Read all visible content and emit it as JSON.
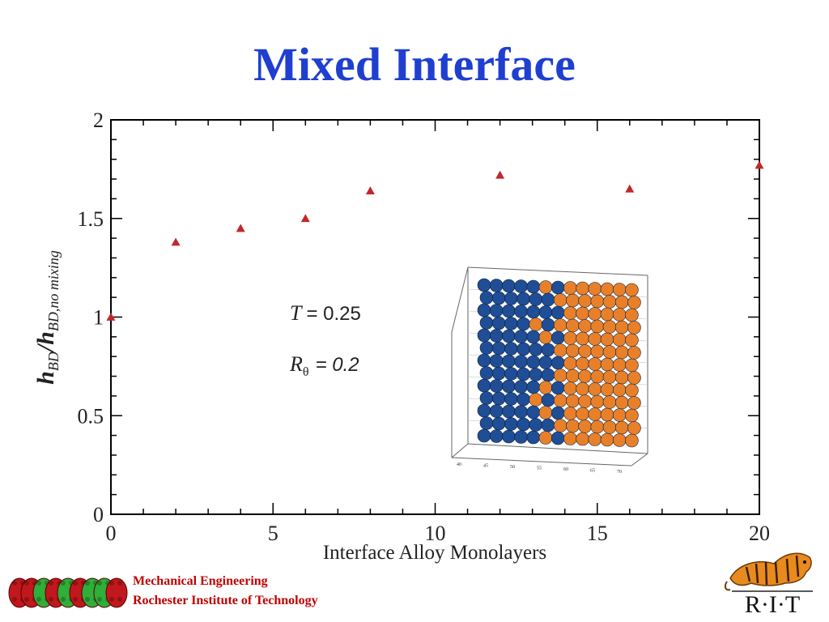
{
  "slide": {
    "title": "Mixed Interface"
  },
  "chart_data": {
    "type": "scatter",
    "xlabel": "Interface Alloy Monolayers",
    "ylabel_main": "h",
    "ylabel_sub1": "BD",
    "ylabel_sep": "/h",
    "ylabel_sub2": "BD,no mixing",
    "xlim": [
      0,
      20
    ],
    "ylim": [
      0,
      2
    ],
    "xticks": [
      "0",
      "5",
      "10",
      "15",
      "20"
    ],
    "yticks": [
      "0",
      "0.5",
      "1",
      "1.5",
      "2"
    ],
    "grid": false,
    "marker_color": "#c0282b",
    "series": [
      {
        "x": [
          0,
          2,
          4,
          6,
          8,
          12,
          16,
          20
        ],
        "y": [
          1.0,
          1.38,
          1.45,
          1.5,
          1.64,
          1.72,
          1.65,
          1.77
        ]
      }
    ],
    "annotations": {
      "T_symbol": "T",
      "T_value": "= 0.25",
      "R_symbol": "R",
      "R_sub": "θ",
      "R_value": "= 0.2"
    }
  },
  "inset": {
    "blue_color": "#1f4e96",
    "orange_color": "#e8802a",
    "axis_labels": [
      "40",
      "45",
      "50",
      "55",
      "60",
      "65",
      "70"
    ]
  },
  "footer": {
    "department": "Mechanical Engineering",
    "institution": "Rochester Institute of Technology",
    "logo_text": "R·I·T"
  }
}
